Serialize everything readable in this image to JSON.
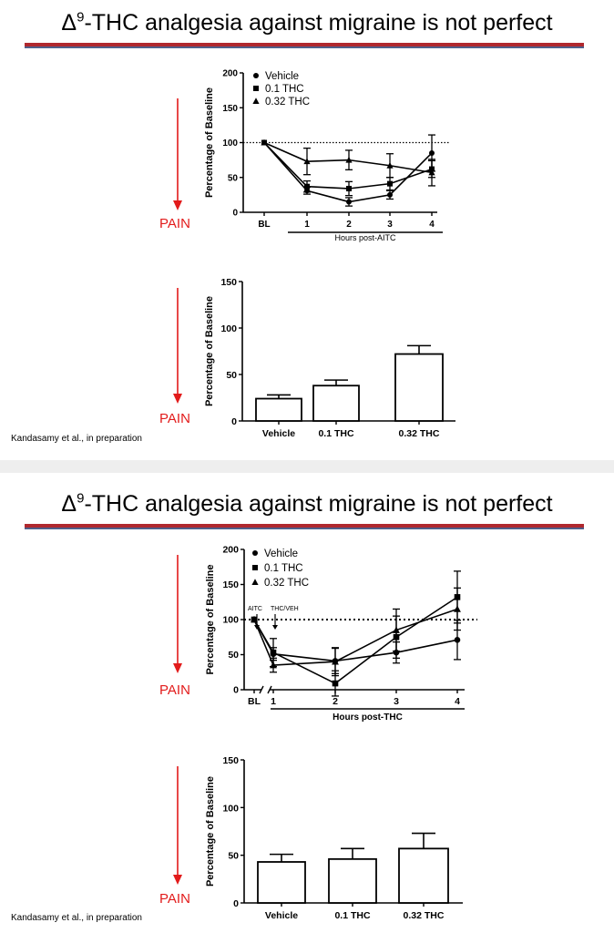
{
  "slides": [
    {
      "title_symbol": "Δ",
      "title_superscript": "9",
      "title_rest": "-THC analgesia against migraine is not perfect",
      "pain_label": "PAIN",
      "citation": "Kandasamy et al., in preparation"
    },
    {
      "title_symbol": "Δ",
      "title_superscript": "9",
      "title_rest": "-THC analgesia against migraine is not perfect",
      "pain_label": "PAIN",
      "citation": "Kandasamy et al., in preparation"
    }
  ],
  "colors": {
    "pain_arrow": "#e21b1b",
    "title_rule_red": "#b0282e",
    "title_rule_blue": "#4f5f8a",
    "ink": "#000000"
  },
  "chart_data": [
    {
      "type": "line",
      "ylabel": "Percentage of Baseline",
      "xlabel": "Hours post-AITC",
      "ylim": [
        0,
        200
      ],
      "yticks": [
        0,
        50,
        100,
        150,
        200
      ],
      "categories": [
        "BL",
        "1",
        "2",
        "3",
        "4"
      ],
      "reference_line": 100,
      "legend_position": "top-left",
      "series": [
        {
          "name": "Vehicle",
          "marker": "circle",
          "values": [
            100,
            31,
            15,
            25,
            85
          ],
          "errors": [
            0,
            5,
            6,
            6,
            26
          ]
        },
        {
          "name": "0.1 THC",
          "marker": "square",
          "values": [
            100,
            37,
            34,
            41,
            62
          ],
          "errors": [
            0,
            8,
            10,
            9,
            12
          ]
        },
        {
          "name": "0.32 THC",
          "marker": "triangle",
          "values": [
            100,
            73,
            75,
            67,
            57
          ],
          "errors": [
            0,
            19,
            14,
            17,
            19
          ]
        }
      ]
    },
    {
      "type": "bar",
      "ylabel": "Percentage of Baseline",
      "ylim": [
        0,
        150
      ],
      "yticks": [
        0,
        50,
        100,
        150
      ],
      "categories": [
        "Vehicle",
        "0.1 THC",
        "0.32 THC"
      ],
      "values": [
        24,
        38,
        72
      ],
      "errors": [
        4,
        6,
        9
      ]
    },
    {
      "type": "line",
      "ylabel": "Percentage of Baseline",
      "xlabel": "Hours post-THC",
      "ylim": [
        0,
        200
      ],
      "yticks": [
        0,
        50,
        100,
        150,
        200
      ],
      "categories": [
        "BL",
        "1",
        "2",
        "3",
        "4"
      ],
      "reference_line": 100,
      "legend_position": "top-left",
      "annotations": [
        "AITC",
        "THC/VEH"
      ],
      "series": [
        {
          "name": "Vehicle",
          "marker": "circle",
          "values": [
            100,
            51,
            41,
            53,
            71
          ],
          "errors": [
            0,
            9,
            18,
            15,
            28
          ]
        },
        {
          "name": "0.1 THC",
          "marker": "square",
          "values": [
            100,
            53,
            9,
            75,
            132
          ],
          "errors": [
            0,
            20,
            18,
            30,
            37
          ]
        },
        {
          "name": "0.32 THC",
          "marker": "triangle",
          "values": [
            100,
            35,
            40,
            85,
            115
          ],
          "errors": [
            0,
            10,
            20,
            30,
            30
          ]
        }
      ]
    },
    {
      "type": "bar",
      "ylabel": "Percentage of Baseline",
      "ylim": [
        0,
        150
      ],
      "yticks": [
        0,
        50,
        100,
        150
      ],
      "categories": [
        "Vehicle",
        "0.1 THC",
        "0.32 THC"
      ],
      "values": [
        43,
        46,
        57
      ],
      "errors": [
        8,
        11,
        16
      ]
    }
  ]
}
